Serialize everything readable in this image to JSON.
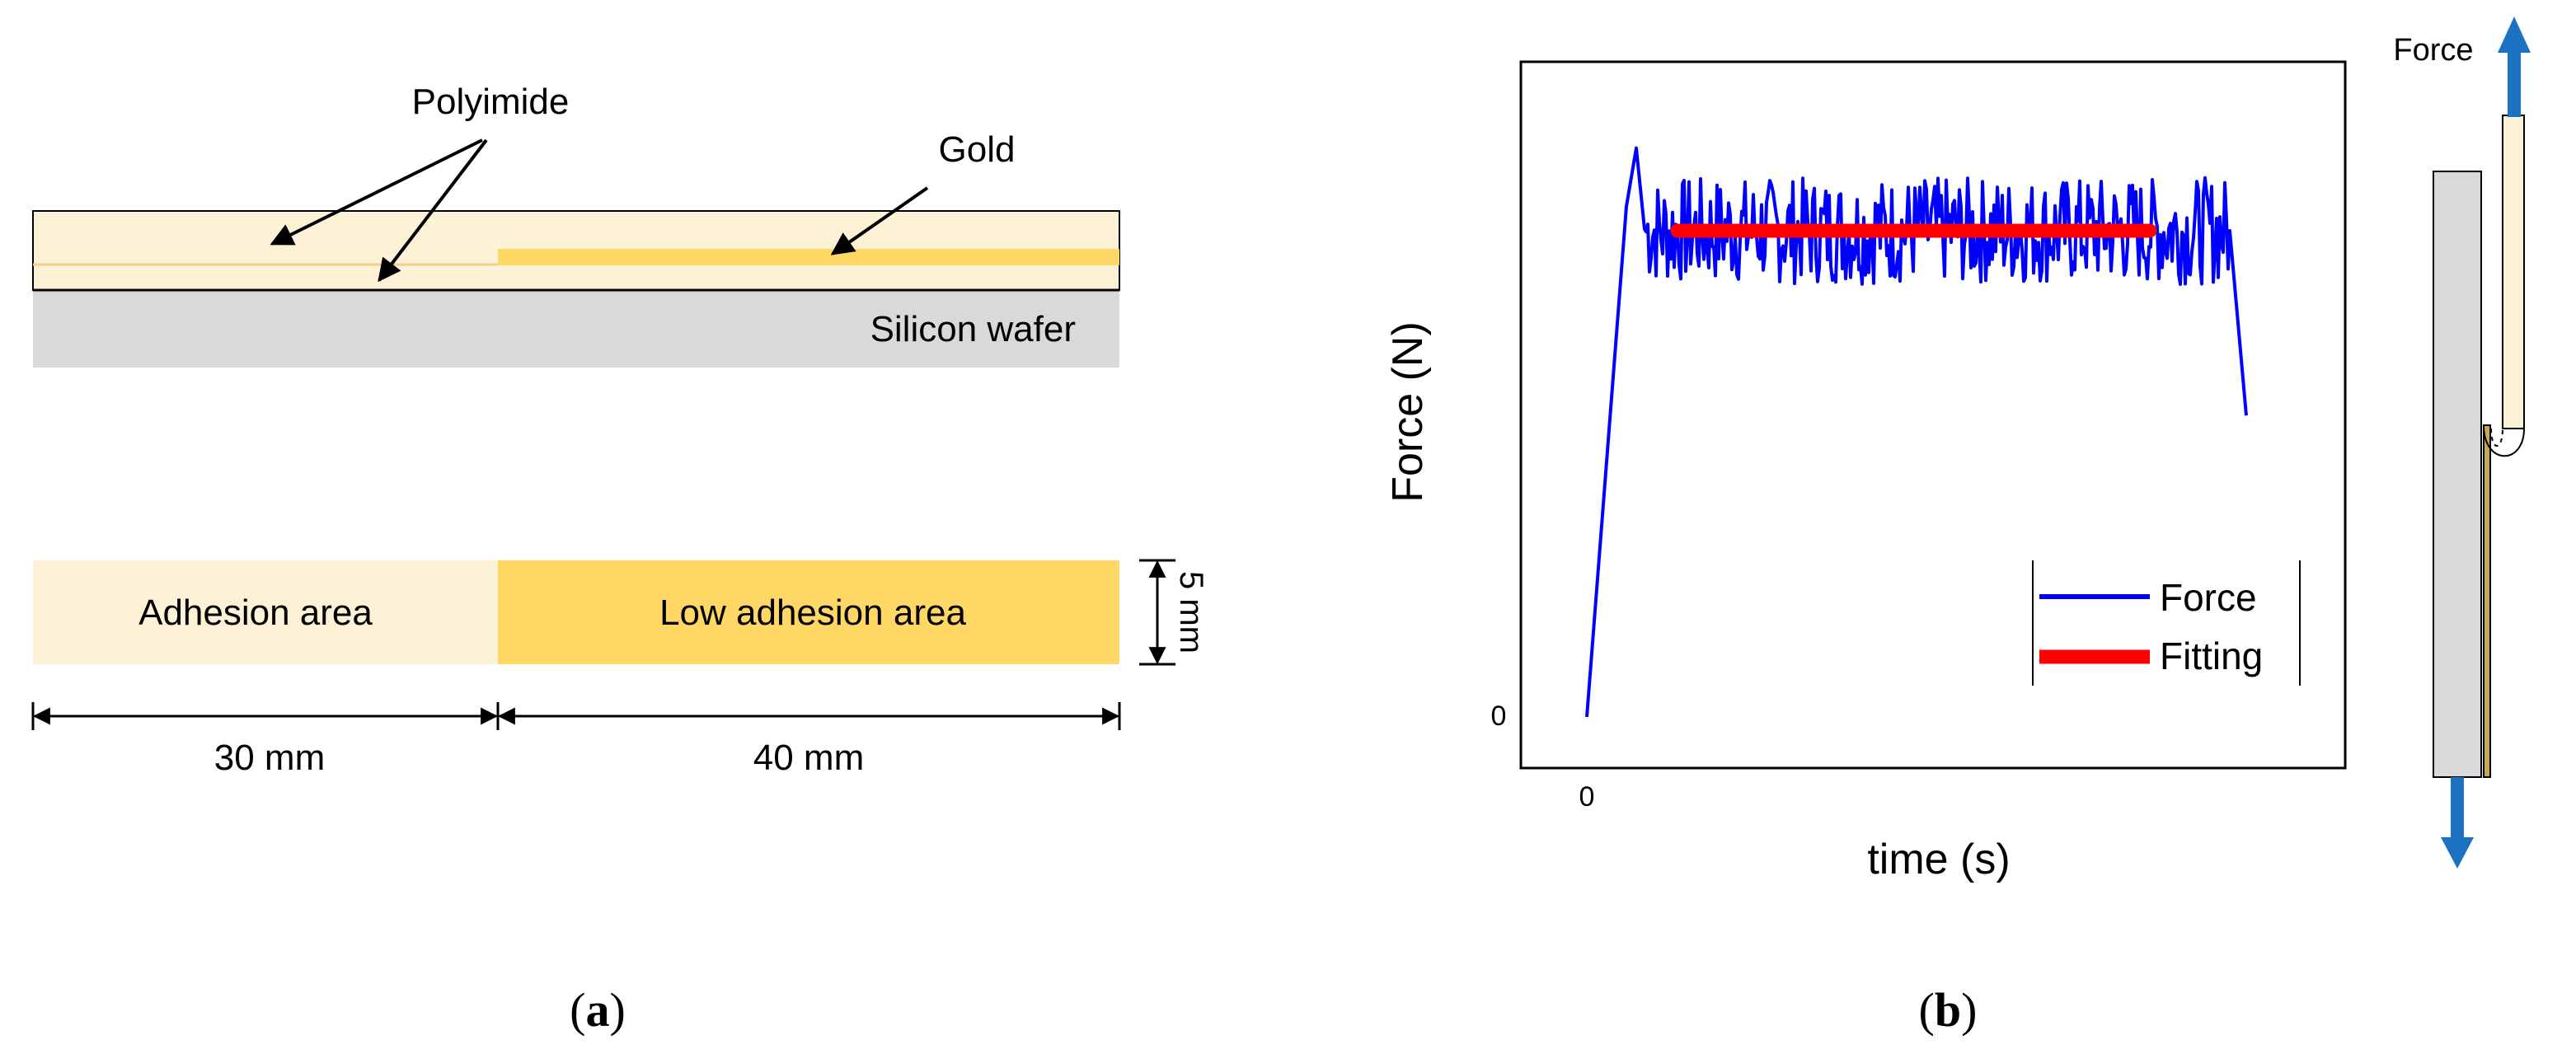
{
  "panel_a": {
    "labels": {
      "polyimide": "Polyimide",
      "gold": "Gold",
      "silicon_wafer": "Silicon wafer",
      "adhesion_area": "Adhesion area",
      "low_adhesion_area": "Low adhesion area",
      "width": "5 mm",
      "dim_left": "30 mm",
      "dim_right": "40 mm"
    },
    "colors": {
      "polyimide": "#fef2d6",
      "gold": "#fed765",
      "silicon": "#d9d9d9"
    },
    "caption": {
      "open": "(",
      "letter": "a",
      "close": ")"
    }
  },
  "panel_b": {
    "chart_data": {
      "type": "line",
      "xlabel": "time (s)",
      "ylabel": "Force (N)",
      "x_tick_labels": [
        "0"
      ],
      "y_tick_labels": [
        "0"
      ],
      "grid": false,
      "legend_position": "bottom-right",
      "series": [
        {
          "name": "Force",
          "color": "#0000ff",
          "shape": "ramp from 0 to a peak of about 1.17, then a noisy plateau around 1.0 with fluctuation of about ±0.1, then a drop near the end",
          "plateau_level": 1.0
        },
        {
          "name": "Fitting",
          "color": "#ff0000",
          "value": 1.0
        }
      ]
    },
    "force_label": "Force",
    "caption": {
      "open": "(",
      "letter": "b",
      "close": ")"
    }
  }
}
